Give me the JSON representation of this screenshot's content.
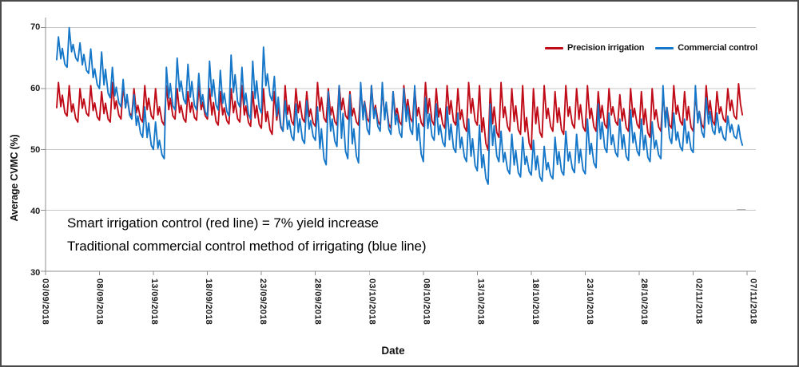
{
  "chart_data": {
    "type": "line",
    "title": "",
    "xlabel": "Date",
    "ylabel": "Average CVMC (%)",
    "ylim": [
      30,
      70
    ],
    "y_ticks": [
      30,
      40,
      50,
      60,
      70
    ],
    "grid": true,
    "legend_position": "top-right",
    "x_tick_interval_days": 5,
    "x_tick_labels": [
      "03/09/2018",
      "08/09/2018",
      "13/09/2018",
      "18/09/2018",
      "23/09/2018",
      "28/09/2018",
      "03/10/2018",
      "08/10/2018",
      "13/10/2018",
      "18/10/2018",
      "23/10/2018",
      "28/10/2018",
      "02/11/2018",
      "07/11/2018"
    ],
    "annotations": [
      "Smart irrigation control (red line) = 7% yield increase",
      "Traditional commercial control method of irrigating (blue line)"
    ],
    "sampling_note": "High-frequency soil-moisture traces form a daily sawtooth (sharp irrigation rise, slow drydown). Each series is encoded as one [peak, trough] pair of Average CVMC (%) per day, starting at day_start days after 03/09/2018.",
    "series": [
      {
        "name": "Precision irrigation",
        "color": "#c00c18",
        "day_start": 1,
        "daily_peak_trough": [
          [
            61,
            55.5
          ],
          [
            60.5,
            54.5
          ],
          [
            60,
            55.5
          ],
          [
            60.5,
            54.8
          ],
          [
            59.5,
            54.5
          ],
          [
            61,
            55
          ],
          [
            60.5,
            55.5
          ],
          [
            60,
            54.5
          ],
          [
            60.5,
            55
          ],
          [
            60,
            54
          ],
          [
            60.5,
            55
          ],
          [
            60,
            54.5
          ],
          [
            59.5,
            54.8
          ],
          [
            60.5,
            55
          ],
          [
            60,
            54
          ],
          [
            59.5,
            54.2
          ],
          [
            60,
            54.5
          ],
          [
            60.5,
            53.8
          ],
          [
            59.5,
            53.5
          ],
          [
            60,
            52.5
          ],
          [
            59.5,
            53
          ],
          [
            60.5,
            54
          ],
          [
            60,
            54.5
          ],
          [
            59.5,
            53.8
          ],
          [
            61,
            54.5
          ],
          [
            60,
            54
          ],
          [
            60.5,
            55
          ],
          [
            59.5,
            54
          ],
          [
            60,
            54.5
          ],
          [
            60.5,
            54
          ],
          [
            60,
            53.5
          ],
          [
            59.5,
            54
          ],
          [
            60.5,
            54.5
          ],
          [
            60,
            53.8
          ],
          [
            61,
            54
          ],
          [
            60,
            53.5
          ],
          [
            60.5,
            54
          ],
          [
            60,
            53
          ],
          [
            61,
            54
          ],
          [
            60.5,
            49.9
          ],
          [
            60,
            52
          ],
          [
            61,
            53
          ],
          [
            60,
            52.5
          ],
          [
            60.5,
            50
          ],
          [
            60,
            52
          ],
          [
            60.5,
            53
          ],
          [
            59.5,
            52.5
          ],
          [
            60.5,
            53.5
          ],
          [
            60,
            53
          ],
          [
            60.5,
            53
          ],
          [
            59.5,
            53.5
          ],
          [
            60,
            54
          ],
          [
            59,
            53
          ],
          [
            60,
            53.5
          ],
          [
            59.5,
            52
          ],
          [
            60,
            53
          ],
          [
            59,
            53.5
          ],
          [
            60.5,
            54
          ],
          [
            59.5,
            53
          ],
          [
            59,
            53.5
          ],
          [
            60.5,
            54
          ],
          [
            59.5,
            54.5
          ],
          [
            60,
            55
          ],
          [
            60.8,
            55.7
          ]
        ]
      },
      {
        "name": "Commercial control",
        "color": "#1677c8",
        "day_start": 1,
        "daily_peak_trough": [
          [
            68.5,
            63.5
          ],
          [
            70,
            64.5
          ],
          [
            67.5,
            62.5
          ],
          [
            66.5,
            60
          ],
          [
            66,
            58.5
          ],
          [
            63.5,
            57
          ],
          [
            61.5,
            55
          ],
          [
            59,
            52
          ],
          [
            57,
            50
          ],
          [
            54.5,
            48.5
          ],
          [
            63.5,
            56.5
          ],
          [
            65,
            57.5
          ],
          [
            64,
            56.5
          ],
          [
            62.5,
            55.5
          ],
          [
            64.5,
            56.5
          ],
          [
            63,
            55.5
          ],
          [
            65.5,
            57
          ],
          [
            63.5,
            55
          ],
          [
            64.5,
            56
          ],
          [
            66.8,
            58
          ],
          [
            62,
            53
          ],
          [
            58,
            51.5
          ],
          [
            57.5,
            51
          ],
          [
            58,
            51.5
          ],
          [
            57,
            47.5
          ],
          [
            59.5,
            50.5
          ],
          [
            60.5,
            48.5
          ],
          [
            59,
            47.8
          ],
          [
            61,
            52.5
          ],
          [
            60.5,
            53
          ],
          [
            61,
            52.5
          ],
          [
            59.5,
            52
          ],
          [
            60,
            52.5
          ],
          [
            60.5,
            48
          ],
          [
            58.5,
            51.5
          ],
          [
            57.5,
            50.5
          ],
          [
            57,
            49.5
          ],
          [
            56,
            48
          ],
          [
            55,
            46.5
          ],
          [
            54,
            44.3
          ],
          [
            57.5,
            48
          ],
          [
            53,
            46
          ],
          [
            52.5,
            45.5
          ],
          [
            52,
            45.8
          ],
          [
            51.5,
            44.8
          ],
          [
            50.5,
            45.2
          ],
          [
            52,
            45.8
          ],
          [
            53,
            46.2
          ],
          [
            52.5,
            46
          ],
          [
            55,
            47
          ],
          [
            57.5,
            49.5
          ],
          [
            56,
            48.8
          ],
          [
            55,
            48.2
          ],
          [
            56.5,
            49
          ],
          [
            55,
            48
          ],
          [
            54.5,
            48.5
          ],
          [
            60.5,
            51
          ],
          [
            56,
            49.8
          ],
          [
            55,
            49.5
          ],
          [
            60.5,
            52
          ],
          [
            58.5,
            52.5
          ],
          [
            56,
            51.5
          ],
          [
            55.5,
            51.8
          ],
          [
            54,
            50.7
          ]
        ]
      }
    ]
  }
}
